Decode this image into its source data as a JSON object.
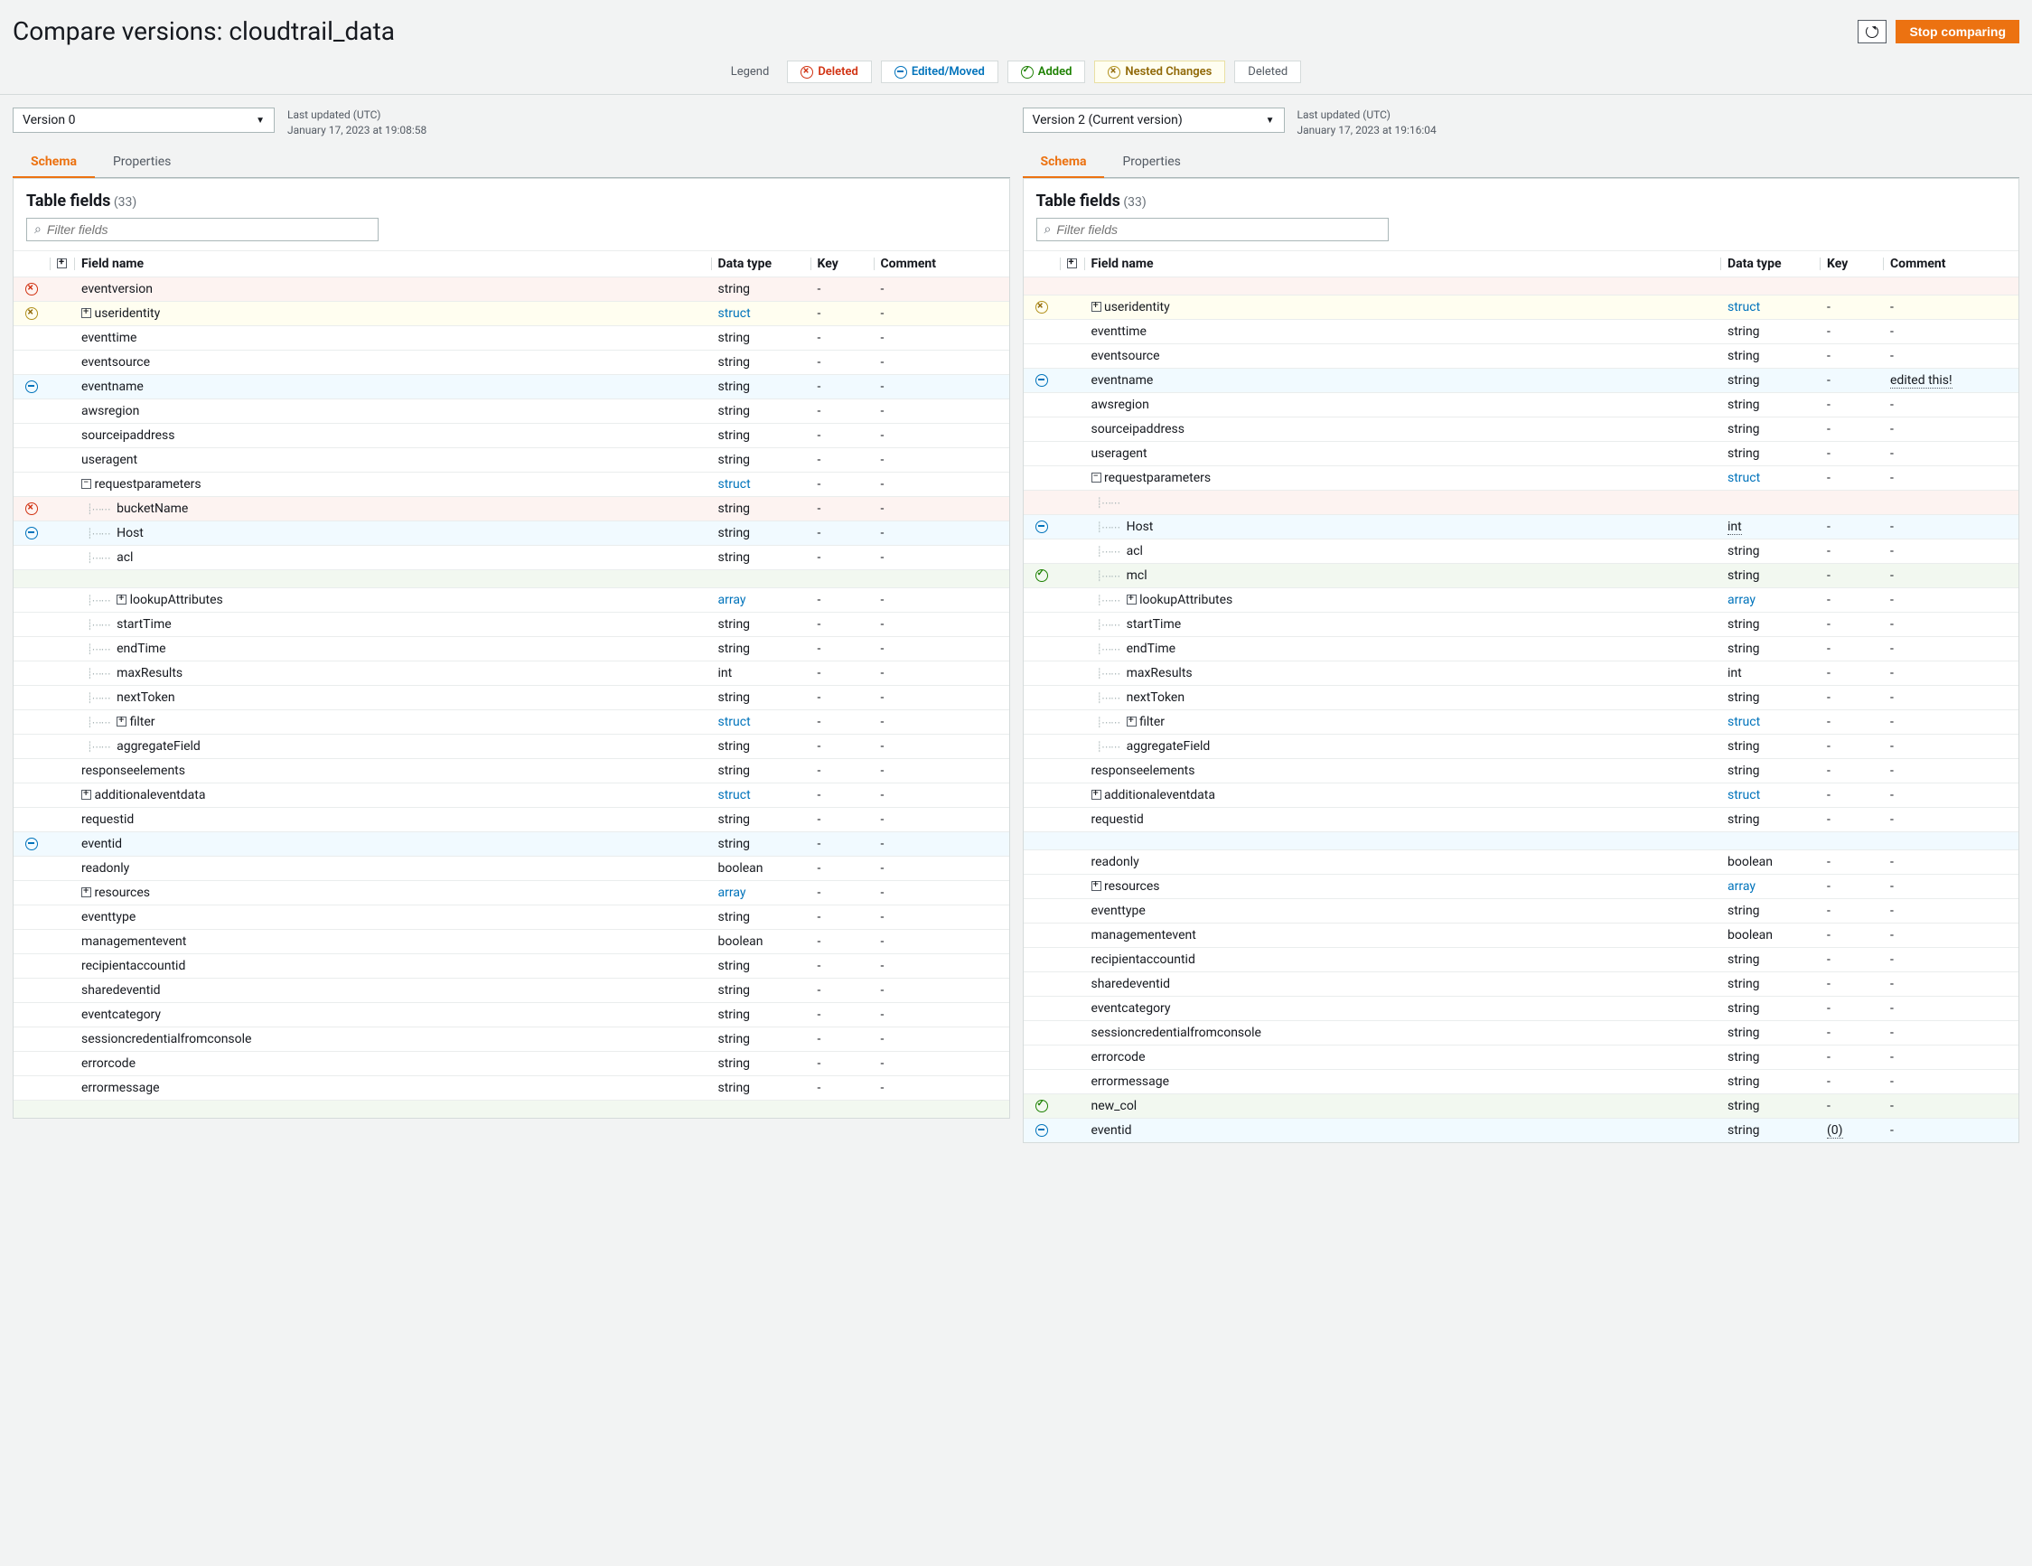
{
  "title": "Compare versions: cloudtrail_data",
  "actions": {
    "stop": "Stop comparing"
  },
  "legend": {
    "label": "Legend",
    "deleted": "Deleted",
    "edited": "Edited/Moved",
    "added": "Added",
    "nested": "Nested Changes",
    "plain": "Deleted"
  },
  "left": {
    "version": "Version 0",
    "meta_label": "Last updated (UTC)",
    "meta_time": "January 17, 2023 at 19:08:58",
    "tabs": {
      "schema": "Schema",
      "properties": "Properties"
    },
    "table_title": "Table fields",
    "count": "(33)",
    "filter_ph": "Filter fields",
    "cols": {
      "name": "Field name",
      "type": "Data type",
      "key": "Key",
      "comment": "Comment"
    },
    "rows": [
      {
        "mark": "del",
        "name": "eventversion",
        "type": "string",
        "key": "-",
        "comment": "-",
        "row": "del"
      },
      {
        "mark": "nest",
        "expand": true,
        "name": "useridentity",
        "type": "struct",
        "typeLink": true,
        "key": "-",
        "comment": "-",
        "row": "nest"
      },
      {
        "name": "eventtime",
        "type": "string",
        "key": "-",
        "comment": "-"
      },
      {
        "name": "eventsource",
        "type": "string",
        "key": "-",
        "comment": "-"
      },
      {
        "mark": "edit",
        "name": "eventname",
        "type": "string",
        "key": "-",
        "comment": "-",
        "row": "edit"
      },
      {
        "name": "awsregion",
        "type": "string",
        "key": "-",
        "comment": "-"
      },
      {
        "name": "sourceipaddress",
        "type": "string",
        "key": "-",
        "comment": "-"
      },
      {
        "name": "useragent",
        "type": "string",
        "key": "-",
        "comment": "-"
      },
      {
        "expand": "open",
        "name": "requestparameters",
        "type": "struct",
        "typeLink": true,
        "key": "-",
        "comment": "-"
      },
      {
        "mark": "del",
        "indent": 1,
        "tree": true,
        "name": "bucketName",
        "type": "string",
        "key": "-",
        "comment": "-",
        "row": "del"
      },
      {
        "mark": "edit",
        "indent": 1,
        "tree": true,
        "name": "Host",
        "type": "string",
        "key": "-",
        "comment": "-",
        "row": "edit"
      },
      {
        "indent": 1,
        "tree": true,
        "name": "acl",
        "type": "string",
        "key": "-",
        "comment": "-"
      },
      {
        "spacer": true,
        "row": "add"
      },
      {
        "indent": 1,
        "tree": true,
        "expand": true,
        "name": "lookupAttributes",
        "type": "array",
        "typeLink": true,
        "key": "-",
        "comment": "-"
      },
      {
        "indent": 1,
        "tree": true,
        "name": "startTime",
        "type": "string",
        "key": "-",
        "comment": "-"
      },
      {
        "indent": 1,
        "tree": true,
        "name": "endTime",
        "type": "string",
        "key": "-",
        "comment": "-"
      },
      {
        "indent": 1,
        "tree": true,
        "name": "maxResults",
        "type": "int",
        "key": "-",
        "comment": "-"
      },
      {
        "indent": 1,
        "tree": true,
        "name": "nextToken",
        "type": "string",
        "key": "-",
        "comment": "-"
      },
      {
        "indent": 1,
        "tree": true,
        "expand": true,
        "name": "filter",
        "type": "struct",
        "typeLink": true,
        "key": "-",
        "comment": "-"
      },
      {
        "indent": 1,
        "tree": true,
        "name": "aggregateField",
        "type": "string",
        "key": "-",
        "comment": "-"
      },
      {
        "name": "responseelements",
        "type": "string",
        "key": "-",
        "comment": "-"
      },
      {
        "expand": true,
        "name": "additionaleventdata",
        "type": "struct",
        "typeLink": true,
        "key": "-",
        "comment": "-"
      },
      {
        "name": "requestid",
        "type": "string",
        "key": "-",
        "comment": "-"
      },
      {
        "mark": "edit",
        "name": "eventid",
        "type": "string",
        "key": "-",
        "comment": "-",
        "row": "edit"
      },
      {
        "name": "readonly",
        "type": "boolean",
        "key": "-",
        "comment": "-"
      },
      {
        "expand": true,
        "name": "resources",
        "type": "array",
        "typeLink": true,
        "key": "-",
        "comment": "-"
      },
      {
        "name": "eventtype",
        "type": "string",
        "key": "-",
        "comment": "-"
      },
      {
        "name": "managementevent",
        "type": "boolean",
        "key": "-",
        "comment": "-"
      },
      {
        "name": "recipientaccountid",
        "type": "string",
        "key": "-",
        "comment": "-"
      },
      {
        "name": "sharedeventid",
        "type": "string",
        "key": "-",
        "comment": "-"
      },
      {
        "name": "eventcategory",
        "type": "string",
        "key": "-",
        "comment": "-"
      },
      {
        "name": "sessioncredentialfromconsole",
        "type": "string",
        "key": "-",
        "comment": "-"
      },
      {
        "name": "errorcode",
        "type": "string",
        "key": "-",
        "comment": "-"
      },
      {
        "name": "errormessage",
        "type": "string",
        "key": "-",
        "comment": "-"
      },
      {
        "spacer": true,
        "row": "add"
      }
    ]
  },
  "right": {
    "version": "Version 2 (Current version)",
    "meta_label": "Last updated (UTC)",
    "meta_time": "January 17, 2023 at 19:16:04",
    "tabs": {
      "schema": "Schema",
      "properties": "Properties"
    },
    "table_title": "Table fields",
    "count": "(33)",
    "filter_ph": "Filter fields",
    "cols": {
      "name": "Field name",
      "type": "Data type",
      "key": "Key",
      "comment": "Comment"
    },
    "rows": [
      {
        "spacer": true,
        "row": "del"
      },
      {
        "mark": "nest",
        "expand": true,
        "name": "useridentity",
        "type": "struct",
        "typeLink": true,
        "key": "-",
        "comment": "-",
        "row": "nest"
      },
      {
        "name": "eventtime",
        "type": "string",
        "key": "-",
        "comment": "-"
      },
      {
        "name": "eventsource",
        "type": "string",
        "key": "-",
        "comment": "-"
      },
      {
        "mark": "edit",
        "name": "eventname",
        "type": "string",
        "key": "-",
        "comment": "edited this!",
        "commentDotted": true,
        "row": "edit"
      },
      {
        "name": "awsregion",
        "type": "string",
        "key": "-",
        "comment": "-"
      },
      {
        "name": "sourceipaddress",
        "type": "string",
        "key": "-",
        "comment": "-"
      },
      {
        "name": "useragent",
        "type": "string",
        "key": "-",
        "comment": "-"
      },
      {
        "expand": "open",
        "name": "requestparameters",
        "type": "struct",
        "typeLink": true,
        "key": "-",
        "comment": "-"
      },
      {
        "spacer": true,
        "row": "del",
        "indent": 1,
        "tree": true
      },
      {
        "mark": "edit",
        "indent": 1,
        "tree": true,
        "name": "Host",
        "type": "int",
        "typeDotted": true,
        "key": "-",
        "comment": "-",
        "row": "edit"
      },
      {
        "indent": 1,
        "tree": true,
        "name": "acl",
        "type": "string",
        "key": "-",
        "comment": "-"
      },
      {
        "mark": "add",
        "indent": 1,
        "tree": true,
        "name": "mcl",
        "type": "string",
        "key": "-",
        "comment": "-",
        "row": "add"
      },
      {
        "indent": 1,
        "tree": true,
        "expand": true,
        "name": "lookupAttributes",
        "type": "array",
        "typeLink": true,
        "key": "-",
        "comment": "-"
      },
      {
        "indent": 1,
        "tree": true,
        "name": "startTime",
        "type": "string",
        "key": "-",
        "comment": "-"
      },
      {
        "indent": 1,
        "tree": true,
        "name": "endTime",
        "type": "string",
        "key": "-",
        "comment": "-"
      },
      {
        "indent": 1,
        "tree": true,
        "name": "maxResults",
        "type": "int",
        "key": "-",
        "comment": "-"
      },
      {
        "indent": 1,
        "tree": true,
        "name": "nextToken",
        "type": "string",
        "key": "-",
        "comment": "-"
      },
      {
        "indent": 1,
        "tree": true,
        "expand": true,
        "name": "filter",
        "type": "struct",
        "typeLink": true,
        "key": "-",
        "comment": "-"
      },
      {
        "indent": 1,
        "tree": true,
        "name": "aggregateField",
        "type": "string",
        "key": "-",
        "comment": "-"
      },
      {
        "name": "responseelements",
        "type": "string",
        "key": "-",
        "comment": "-"
      },
      {
        "expand": true,
        "name": "additionaleventdata",
        "type": "struct",
        "typeLink": true,
        "key": "-",
        "comment": "-"
      },
      {
        "name": "requestid",
        "type": "string",
        "key": "-",
        "comment": "-"
      },
      {
        "spacer": true,
        "row": "edit"
      },
      {
        "name": "readonly",
        "type": "boolean",
        "key": "-",
        "comment": "-"
      },
      {
        "expand": true,
        "name": "resources",
        "type": "array",
        "typeLink": true,
        "key": "-",
        "comment": "-"
      },
      {
        "name": "eventtype",
        "type": "string",
        "key": "-",
        "comment": "-"
      },
      {
        "name": "managementevent",
        "type": "boolean",
        "key": "-",
        "comment": "-"
      },
      {
        "name": "recipientaccountid",
        "type": "string",
        "key": "-",
        "comment": "-"
      },
      {
        "name": "sharedeventid",
        "type": "string",
        "key": "-",
        "comment": "-"
      },
      {
        "name": "eventcategory",
        "type": "string",
        "key": "-",
        "comment": "-"
      },
      {
        "name": "sessioncredentialfromconsole",
        "type": "string",
        "key": "-",
        "comment": "-"
      },
      {
        "name": "errorcode",
        "type": "string",
        "key": "-",
        "comment": "-"
      },
      {
        "name": "errormessage",
        "type": "string",
        "key": "-",
        "comment": "-"
      },
      {
        "mark": "add",
        "name": "new_col",
        "type": "string",
        "key": "-",
        "comment": "-",
        "row": "add"
      },
      {
        "mark": "edit",
        "name": "eventid",
        "type": "string",
        "key": "(0)",
        "keyDotted": true,
        "comment": "-",
        "row": "edit"
      }
    ]
  }
}
